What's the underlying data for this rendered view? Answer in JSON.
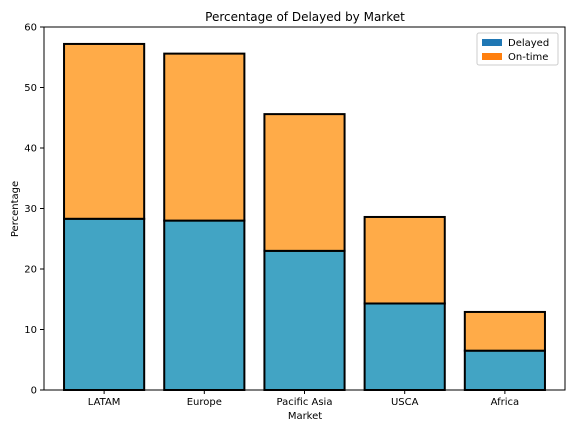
{
  "chart_data": {
    "type": "bar",
    "stacked": true,
    "title": "Percentage of Delayed by Market",
    "xlabel": "Market",
    "ylabel": "Percentage",
    "ylim": [
      0,
      60
    ],
    "yticks": [
      0,
      10,
      20,
      30,
      40,
      50,
      60
    ],
    "categories": [
      "LATAM",
      "Europe",
      "Pacific Asia",
      "USCA",
      "Africa"
    ],
    "series": [
      {
        "name": "Delayed",
        "values": [
          28.3,
          28.0,
          23.0,
          14.3,
          6.5
        ]
      },
      {
        "name": "On-time",
        "values": [
          28.9,
          27.6,
          22.6,
          14.3,
          6.4
        ]
      }
    ],
    "legend": {
      "position": "upper right",
      "entries": [
        {
          "label": "Delayed",
          "color": "#1f77b4"
        },
        {
          "label": "On-time",
          "color": "#ff7f0e"
        }
      ]
    },
    "bar_colors": [
      "#42a4c4",
      "#ffab48"
    ],
    "bar_edge_color": "#000000",
    "grid": false
  }
}
